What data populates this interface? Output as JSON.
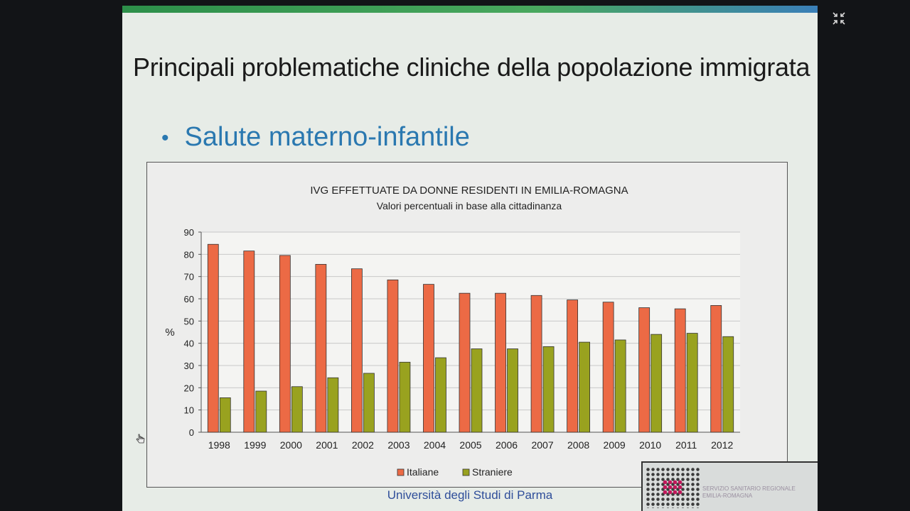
{
  "slide": {
    "title": "Principali problematiche cliniche della popolazione immigrata",
    "bullet": "Salute materno-infantile",
    "footer": "Università degli Studi di Parma",
    "logo_text": "SERVIZIO SANITARIO REGIONALE EMILIA-ROMAGNA"
  },
  "icons": {
    "exit_fullscreen": "exit-fullscreen-icon",
    "cursor": "hand-cursor-icon"
  },
  "colors": {
    "italiane": "#ec6a45",
    "straniere": "#99a21f",
    "bullet": "#2a78b0"
  },
  "chart_data": {
    "type": "bar",
    "title": "IVG EFFETTUATE DA DONNE RESIDENTI IN EMILIA-ROMAGNA",
    "subtitle": "Valori percentuali in base alla cittadinanza",
    "ylabel": "%",
    "xlabel": "",
    "ylim": [
      0,
      90
    ],
    "yticks": [
      0,
      10,
      20,
      30,
      40,
      50,
      60,
      70,
      80,
      90
    ],
    "categories": [
      "1998",
      "1999",
      "2000",
      "2001",
      "2002",
      "2003",
      "2004",
      "2005",
      "2006",
      "2007",
      "2008",
      "2009",
      "2010",
      "2011",
      "2012"
    ],
    "series": [
      {
        "name": "Italiane",
        "color": "#ec6a45",
        "values": [
          84.5,
          81.5,
          79.5,
          75.5,
          73.5,
          68.5,
          66.5,
          62.5,
          62.5,
          61.5,
          59.5,
          58.5,
          56,
          55.5,
          57
        ]
      },
      {
        "name": "Straniere",
        "color": "#99a21f",
        "values": [
          15.5,
          18.5,
          20.5,
          24.5,
          26.5,
          31.5,
          33.5,
          37.5,
          37.5,
          38.5,
          40.5,
          41.5,
          44,
          44.5,
          43
        ]
      }
    ],
    "grid": true,
    "legend": "bottom"
  }
}
